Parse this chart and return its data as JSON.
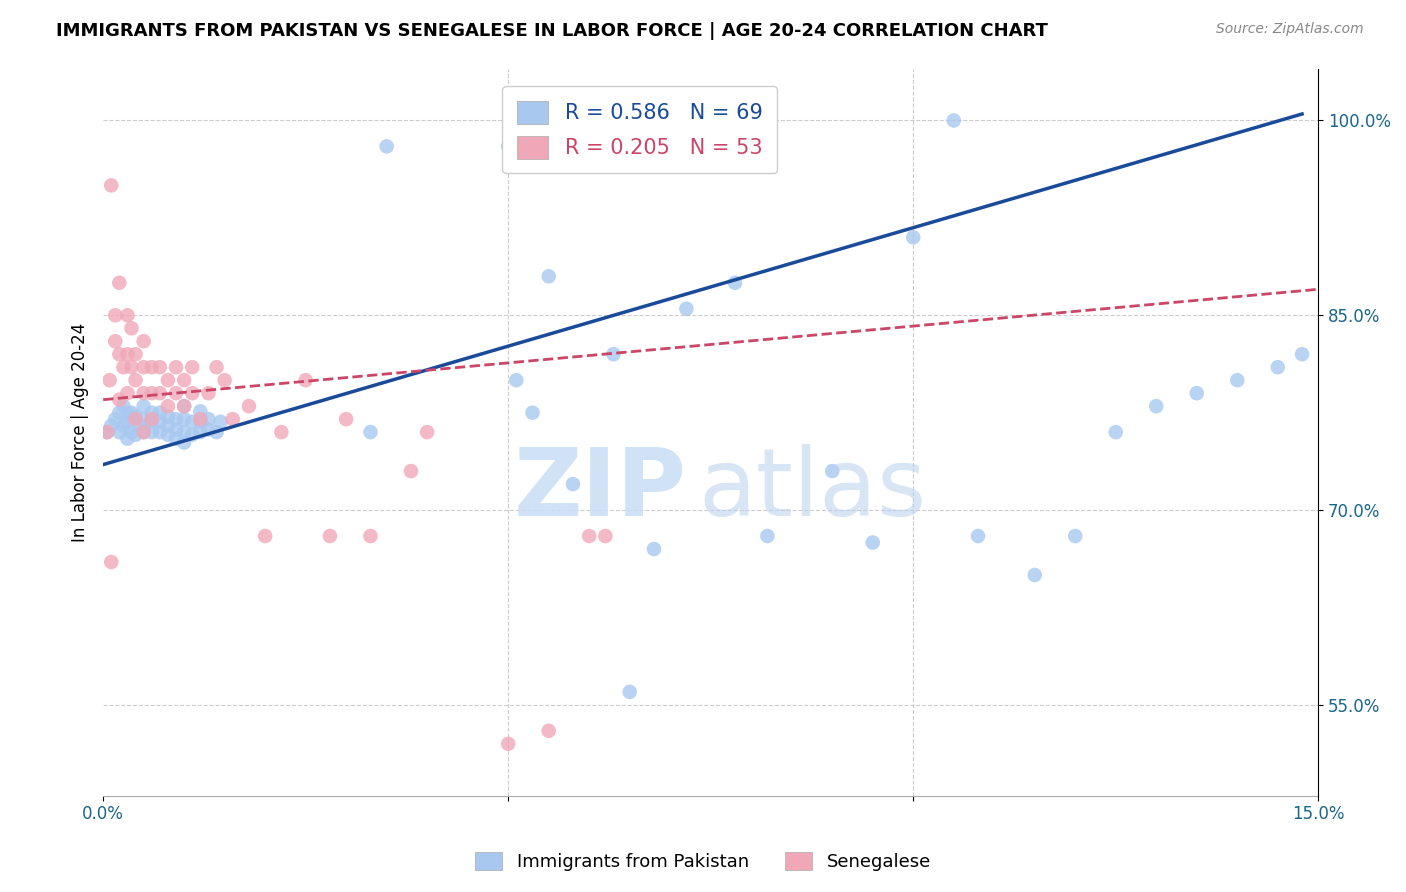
{
  "title": "IMMIGRANTS FROM PAKISTAN VS SENEGALESE IN LABOR FORCE | AGE 20-24 CORRELATION CHART",
  "source": "Source: ZipAtlas.com",
  "ylabel": "In Labor Force | Age 20-24",
  "xlim": [
    0.0,
    0.15
  ],
  "ylim": [
    0.48,
    1.04
  ],
  "background_color": "#ffffff",
  "pakistan_color": "#a8c8f0",
  "senegal_color": "#f0a8b8",
  "pakistan_line_color": "#1a4a9a",
  "senegal_line_color": "#cc4466",
  "grid_color": "#cccccc",
  "pakistan_x": [
    0.0005,
    0.001,
    0.0015,
    0.002,
    0.002,
    0.0025,
    0.0025,
    0.003,
    0.003,
    0.003,
    0.0035,
    0.0035,
    0.004,
    0.004,
    0.0045,
    0.005,
    0.005,
    0.005,
    0.006,
    0.006,
    0.006,
    0.007,
    0.007,
    0.007,
    0.008,
    0.008,
    0.008,
    0.009,
    0.009,
    0.009,
    0.01,
    0.01,
    0.01,
    0.01,
    0.011,
    0.011,
    0.012,
    0.012,
    0.012,
    0.013,
    0.013,
    0.014,
    0.0145,
    0.033,
    0.035,
    0.05,
    0.051,
    0.053,
    0.055,
    0.058,
    0.063,
    0.065,
    0.068,
    0.072,
    0.078,
    0.082,
    0.09,
    0.095,
    0.1,
    0.105,
    0.108,
    0.115,
    0.12,
    0.125,
    0.13,
    0.135,
    0.14,
    0.145,
    0.148
  ],
  "pakistan_y": [
    0.76,
    0.765,
    0.77,
    0.76,
    0.775,
    0.765,
    0.78,
    0.755,
    0.768,
    0.775,
    0.76,
    0.775,
    0.758,
    0.772,
    0.765,
    0.76,
    0.77,
    0.78,
    0.76,
    0.768,
    0.775,
    0.76,
    0.768,
    0.775,
    0.758,
    0.765,
    0.772,
    0.755,
    0.762,
    0.77,
    0.752,
    0.76,
    0.77,
    0.78,
    0.758,
    0.768,
    0.76,
    0.768,
    0.776,
    0.762,
    0.77,
    0.76,
    0.768,
    0.76,
    0.98,
    0.98,
    0.8,
    0.775,
    0.88,
    0.72,
    0.82,
    0.56,
    0.67,
    0.855,
    0.875,
    0.68,
    0.73,
    0.675,
    0.91,
    1.0,
    0.68,
    0.65,
    0.68,
    0.76,
    0.78,
    0.79,
    0.8,
    0.81,
    0.82
  ],
  "senegal_x": [
    0.0005,
    0.0008,
    0.001,
    0.001,
    0.0015,
    0.0015,
    0.002,
    0.002,
    0.002,
    0.0025,
    0.003,
    0.003,
    0.003,
    0.0035,
    0.0035,
    0.004,
    0.004,
    0.004,
    0.005,
    0.005,
    0.005,
    0.005,
    0.006,
    0.006,
    0.006,
    0.007,
    0.007,
    0.008,
    0.008,
    0.009,
    0.009,
    0.01,
    0.01,
    0.011,
    0.011,
    0.012,
    0.013,
    0.014,
    0.015,
    0.016,
    0.018,
    0.02,
    0.022,
    0.025,
    0.028,
    0.03,
    0.033,
    0.038,
    0.04,
    0.05,
    0.055,
    0.06,
    0.062
  ],
  "senegal_y": [
    0.76,
    0.8,
    0.95,
    0.66,
    0.85,
    0.83,
    0.875,
    0.82,
    0.785,
    0.81,
    0.85,
    0.82,
    0.79,
    0.84,
    0.81,
    0.77,
    0.8,
    0.82,
    0.79,
    0.81,
    0.83,
    0.76,
    0.79,
    0.81,
    0.77,
    0.79,
    0.81,
    0.78,
    0.8,
    0.79,
    0.81,
    0.78,
    0.8,
    0.79,
    0.81,
    0.77,
    0.79,
    0.81,
    0.8,
    0.77,
    0.78,
    0.68,
    0.76,
    0.8,
    0.68,
    0.77,
    0.68,
    0.73,
    0.76,
    0.52,
    0.53,
    0.68,
    0.68
  ],
  "pak_line_x": [
    0.0,
    0.148
  ],
  "pak_line_y": [
    0.735,
    1.005
  ],
  "sen_line_x": [
    0.0,
    0.15
  ],
  "sen_line_y": [
    0.785,
    0.87
  ]
}
